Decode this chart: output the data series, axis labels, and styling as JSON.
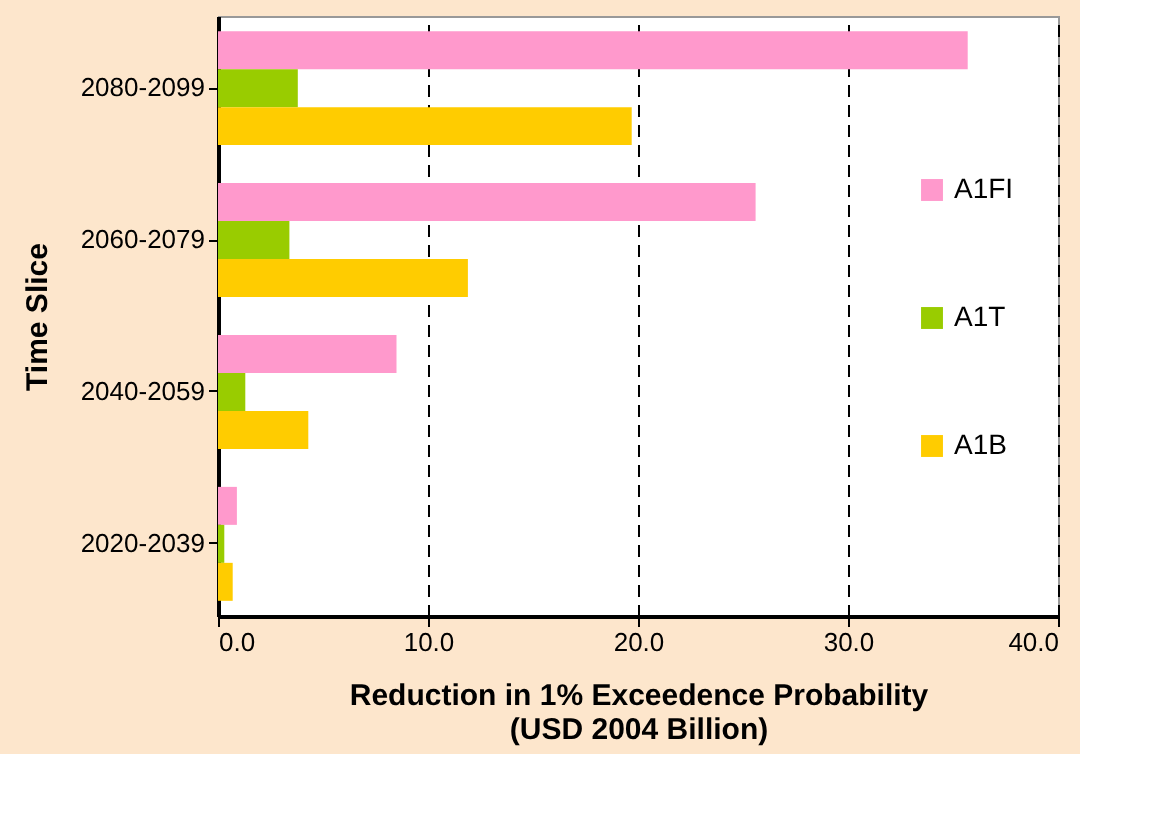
{
  "chart_data": {
    "type": "bar",
    "orientation": "horizontal",
    "xlabel": "Reduction in 1% Exceedence Probability\n(USD 2004 Billion)",
    "ylabel": "Time Slice",
    "categories": [
      "2080-2099",
      "2060-2079",
      "2040-2059",
      "2020-2039"
    ],
    "series": [
      {
        "name": "A1FI",
        "color": "#ff99cc",
        "values": [
          35.7,
          25.6,
          8.5,
          0.9
        ]
      },
      {
        "name": "A1T",
        "color": "#99cc00",
        "values": [
          3.8,
          3.4,
          1.3,
          0.3
        ]
      },
      {
        "name": "A1B",
        "color": "#ffcc00",
        "values": [
          19.7,
          11.9,
          4.3,
          0.7
        ]
      }
    ],
    "xlim": [
      0,
      40
    ],
    "xticks": [
      {
        "value": 0,
        "label": "0.0"
      },
      {
        "value": 10,
        "label": "10.0"
      },
      {
        "value": 20,
        "label": "20.0"
      },
      {
        "value": 30,
        "label": "30.0"
      },
      {
        "value": 40,
        "label": "40.0"
      }
    ],
    "grid": "x",
    "legend": "right"
  }
}
